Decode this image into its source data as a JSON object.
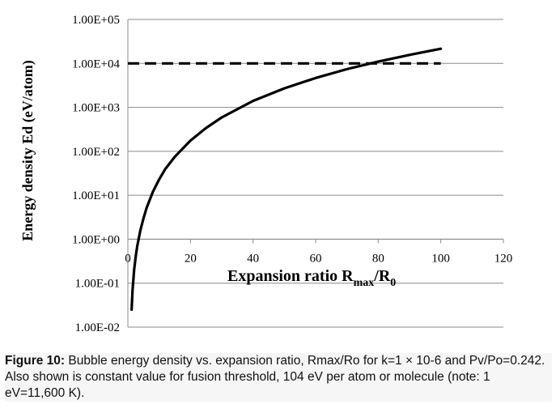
{
  "figure": {
    "caption_label": "Figure 10:",
    "caption_text": "Bubble energy density vs. expansion ratio, Rmax/Ro for k=1 × 10-6 and Pv/Po=0.242. Also shown is constant value for fusion threshold, 104 eV per atom or molecule (note: 1 eV=11,600 K)."
  },
  "chart_data": {
    "type": "line",
    "title": "",
    "xlabel": "Expansion ratio R",
    "xlabel_sub1": "max",
    "xlabel_slash": "/R",
    "xlabel_sub2": "0",
    "ylabel": "Energy density  Ed (eV/atom)",
    "x_ticks": [
      "0",
      "20",
      "40",
      "60",
      "80",
      "100",
      "120"
    ],
    "x_tick_values": [
      0,
      20,
      40,
      60,
      80,
      100,
      120
    ],
    "y_ticks": [
      "1.00E+05",
      "1.00E+04",
      "1.00E+03",
      "1.00E+02",
      "1.00E+01",
      "1.00E+00",
      "1.00E-01",
      "1.00E-02"
    ],
    "y_tick_exponents": [
      5,
      4,
      3,
      2,
      1,
      0,
      -1,
      -2
    ],
    "xlim": [
      0,
      120
    ],
    "ylim": [
      0.01,
      100000
    ],
    "y_scale": "log",
    "grid": "horizontal",
    "legend": "none",
    "series": [
      {
        "style": "solid",
        "color": "#000000",
        "x": [
          1.2,
          1.5,
          2,
          2.5,
          3,
          4,
          5,
          6,
          8,
          10,
          12,
          15,
          20,
          25,
          30,
          40,
          50,
          60,
          70,
          80,
          90,
          100
        ],
        "y": [
          0.025,
          0.07,
          0.2,
          0.4,
          0.7,
          1.6,
          3.0,
          5.2,
          12,
          23,
          40,
          75,
          175,
          340,
          590,
          1400,
          2700,
          4650,
          7400,
          11000,
          15600,
          21500
        ]
      },
      {
        "style": "dashed",
        "color": "#000000",
        "x": [
          0,
          100
        ],
        "y": [
          10000,
          10000
        ]
      }
    ]
  }
}
